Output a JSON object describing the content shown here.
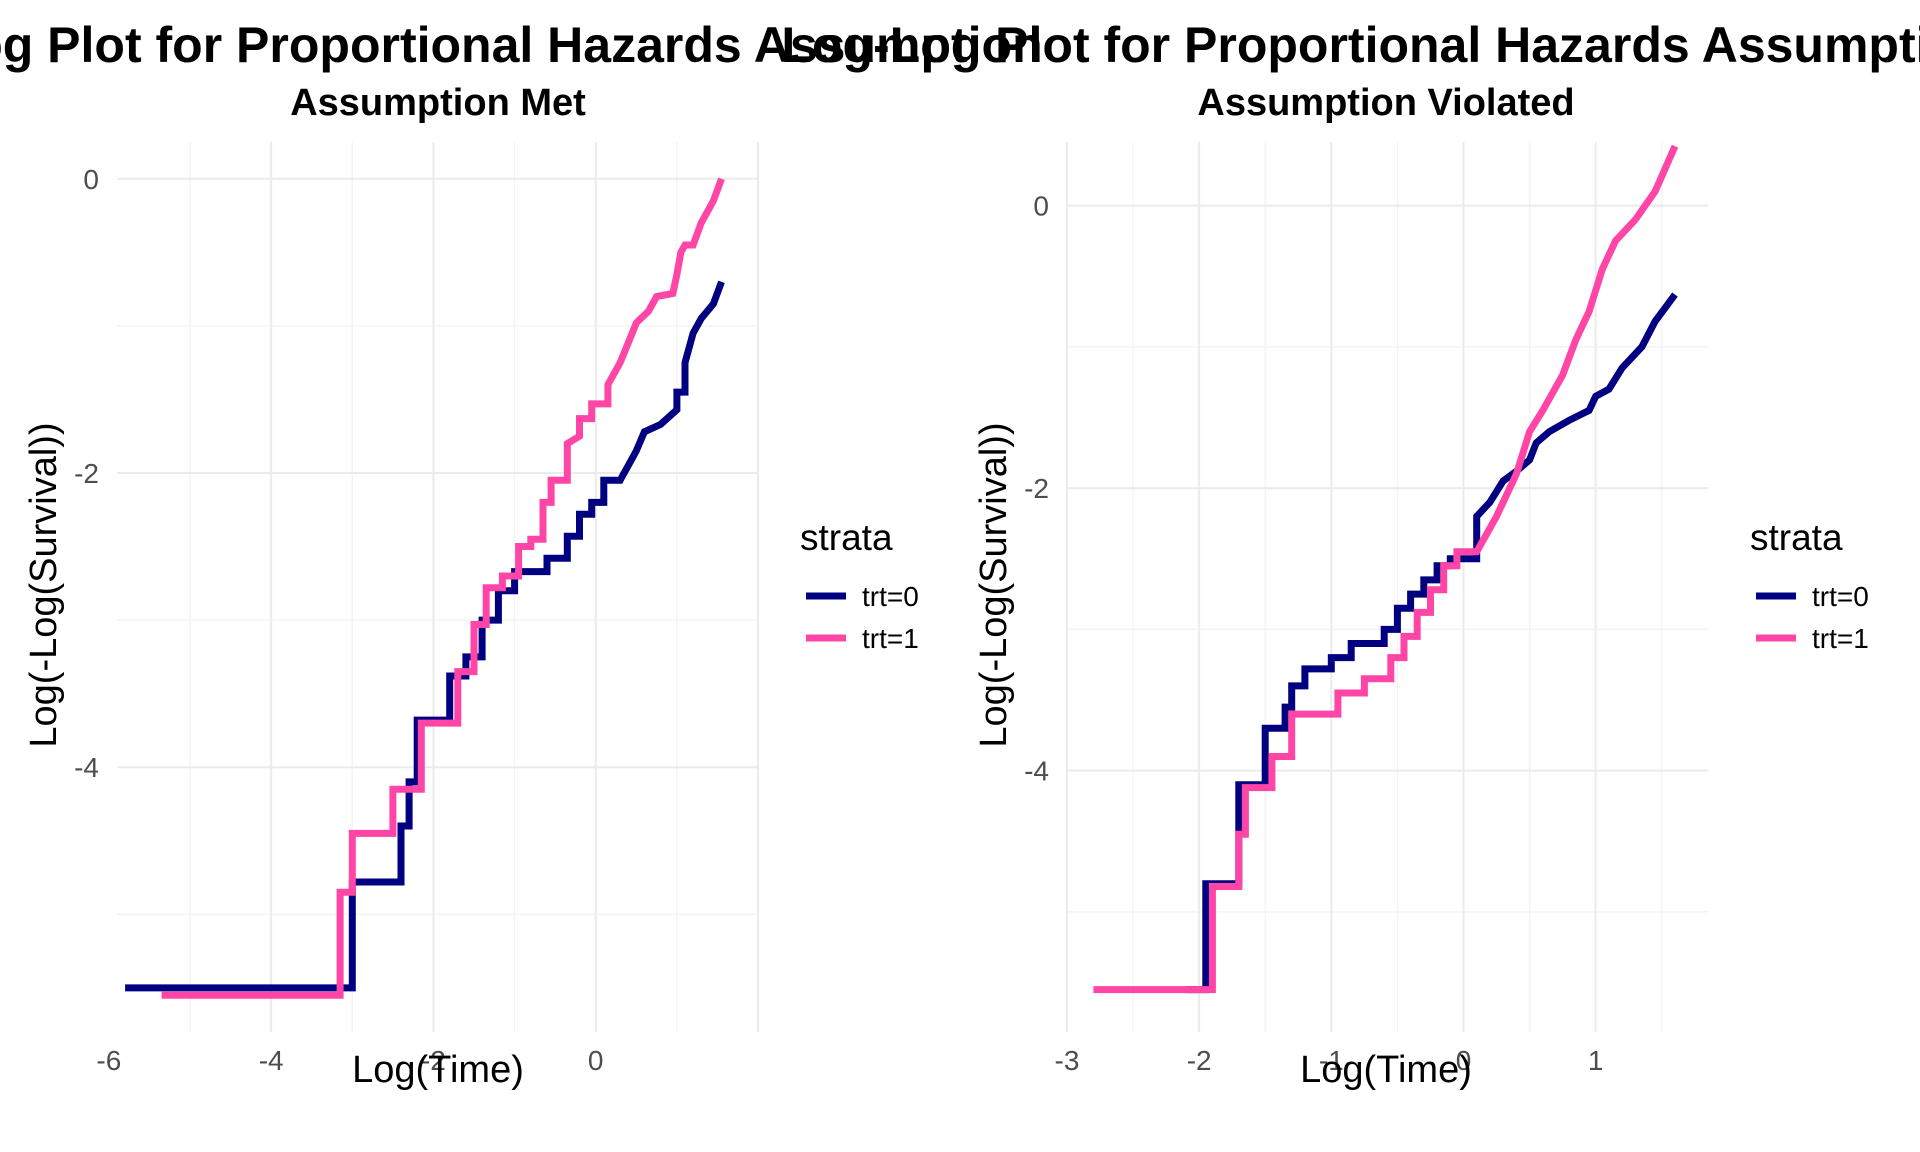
{
  "page": {
    "main_title": "Log-Log Plot for Proportional Hazards Assumption"
  },
  "colors": {
    "trt0": "#000080",
    "trt1": "#ff46a6",
    "grid_major": "#ebebeb",
    "grid_minor": "#f3f3f3",
    "tick_text": "#4d4d4d"
  },
  "chart_data": [
    {
      "type": "line",
      "step": true,
      "title": "Log-Log Plot for Proportional Hazards Assumption",
      "subtitle": "Assumption Met",
      "xlabel": "Log(Time)",
      "ylabel": "Log(-Log(Survival))",
      "xlim": [
        -5.9,
        2.0
      ],
      "ylim": [
        -5.8,
        0.25
      ],
      "xticks": [
        -6,
        -4,
        -2,
        0
      ],
      "yticks": [
        -4,
        -2,
        0
      ],
      "grid": true,
      "legend_title": "strata",
      "legend_position": "right",
      "series": [
        {
          "name": "trt=0",
          "color": "#000080",
          "points": [
            [
              -5.8,
              -5.5
            ],
            [
              -3.0,
              -5.5
            ],
            [
              -3.0,
              -4.78
            ],
            [
              -2.4,
              -4.78
            ],
            [
              -2.4,
              -4.4
            ],
            [
              -2.3,
              -4.4
            ],
            [
              -2.3,
              -4.1
            ],
            [
              -2.2,
              -4.1
            ],
            [
              -2.2,
              -3.68
            ],
            [
              -1.8,
              -3.68
            ],
            [
              -1.8,
              -3.38
            ],
            [
              -1.6,
              -3.38
            ],
            [
              -1.6,
              -3.25
            ],
            [
              -1.4,
              -3.25
            ],
            [
              -1.4,
              -3.0
            ],
            [
              -1.2,
              -3.0
            ],
            [
              -1.2,
              -2.8
            ],
            [
              -1.0,
              -2.8
            ],
            [
              -1.0,
              -2.67
            ],
            [
              -0.6,
              -2.67
            ],
            [
              -0.6,
              -2.58
            ],
            [
              -0.35,
              -2.58
            ],
            [
              -0.35,
              -2.43
            ],
            [
              -0.2,
              -2.43
            ],
            [
              -0.2,
              -2.28
            ],
            [
              -0.05,
              -2.28
            ],
            [
              -0.05,
              -2.2
            ],
            [
              0.1,
              -2.2
            ],
            [
              0.1,
              -2.05
            ],
            [
              0.3,
              -2.05
            ],
            [
              0.5,
              -1.85
            ],
            [
              0.6,
              -1.72
            ],
            [
              0.8,
              -1.67
            ],
            [
              0.9,
              -1.62
            ],
            [
              1.0,
              -1.57
            ],
            [
              1.0,
              -1.45
            ],
            [
              1.1,
              -1.45
            ],
            [
              1.1,
              -1.25
            ],
            [
              1.2,
              -1.05
            ],
            [
              1.3,
              -0.95
            ],
            [
              1.45,
              -0.85
            ],
            [
              1.55,
              -0.7
            ]
          ]
        },
        {
          "name": "trt=1",
          "color": "#ff46a6",
          "points": [
            [
              -5.35,
              -5.55
            ],
            [
              -3.15,
              -5.55
            ],
            [
              -3.15,
              -4.85
            ],
            [
              -3.0,
              -4.85
            ],
            [
              -3.0,
              -4.45
            ],
            [
              -2.5,
              -4.45
            ],
            [
              -2.5,
              -4.15
            ],
            [
              -2.15,
              -4.15
            ],
            [
              -2.15,
              -3.7
            ],
            [
              -1.7,
              -3.7
            ],
            [
              -1.7,
              -3.35
            ],
            [
              -1.5,
              -3.35
            ],
            [
              -1.5,
              -3.03
            ],
            [
              -1.35,
              -3.03
            ],
            [
              -1.35,
              -2.78
            ],
            [
              -1.15,
              -2.78
            ],
            [
              -1.15,
              -2.7
            ],
            [
              -0.95,
              -2.7
            ],
            [
              -0.95,
              -2.5
            ],
            [
              -0.8,
              -2.5
            ],
            [
              -0.8,
              -2.45
            ],
            [
              -0.65,
              -2.45
            ],
            [
              -0.65,
              -2.2
            ],
            [
              -0.55,
              -2.2
            ],
            [
              -0.55,
              -2.05
            ],
            [
              -0.35,
              -2.05
            ],
            [
              -0.35,
              -1.8
            ],
            [
              -0.2,
              -1.75
            ],
            [
              -0.2,
              -1.63
            ],
            [
              -0.05,
              -1.63
            ],
            [
              -0.05,
              -1.53
            ],
            [
              0.15,
              -1.53
            ],
            [
              0.15,
              -1.4
            ],
            [
              0.3,
              -1.25
            ],
            [
              0.45,
              -1.05
            ],
            [
              0.5,
              -0.98
            ],
            [
              0.65,
              -0.9
            ],
            [
              0.75,
              -0.8
            ],
            [
              0.95,
              -0.78
            ],
            [
              1.0,
              -0.65
            ],
            [
              1.05,
              -0.5
            ],
            [
              1.1,
              -0.45
            ],
            [
              1.2,
              -0.45
            ],
            [
              1.3,
              -0.3
            ],
            [
              1.45,
              -0.15
            ],
            [
              1.55,
              0.0
            ]
          ]
        }
      ]
    },
    {
      "type": "line",
      "step": true,
      "title": "Log-Log Plot for Proportional Hazards Assumption",
      "subtitle": "Assumption Violated",
      "xlabel": "Log(Time)",
      "ylabel": "Log(-Log(Survival))",
      "xlim": [
        -3.0,
        1.85
      ],
      "ylim": [
        -5.85,
        0.45
      ],
      "xticks": [
        -3,
        -2,
        -1,
        0,
        1
      ],
      "yticks": [
        -4,
        -2,
        0
      ],
      "grid": true,
      "legend_title": "strata",
      "legend_position": "right",
      "series": [
        {
          "name": "trt=0",
          "color": "#000080",
          "points": [
            [
              -2.1,
              -5.55
            ],
            [
              -1.95,
              -5.55
            ],
            [
              -1.95,
              -4.8
            ],
            [
              -1.7,
              -4.8
            ],
            [
              -1.7,
              -4.1
            ],
            [
              -1.5,
              -4.1
            ],
            [
              -1.5,
              -3.7
            ],
            [
              -1.35,
              -3.7
            ],
            [
              -1.35,
              -3.55
            ],
            [
              -1.3,
              -3.55
            ],
            [
              -1.3,
              -3.4
            ],
            [
              -1.2,
              -3.4
            ],
            [
              -1.2,
              -3.28
            ],
            [
              -1.0,
              -3.28
            ],
            [
              -1.0,
              -3.2
            ],
            [
              -0.85,
              -3.2
            ],
            [
              -0.85,
              -3.1
            ],
            [
              -0.6,
              -3.1
            ],
            [
              -0.6,
              -3.0
            ],
            [
              -0.5,
              -3.0
            ],
            [
              -0.5,
              -2.85
            ],
            [
              -0.4,
              -2.85
            ],
            [
              -0.4,
              -2.75
            ],
            [
              -0.3,
              -2.75
            ],
            [
              -0.3,
              -2.65
            ],
            [
              -0.2,
              -2.65
            ],
            [
              -0.2,
              -2.55
            ],
            [
              -0.1,
              -2.55
            ],
            [
              -0.1,
              -2.5
            ],
            [
              0.1,
              -2.5
            ],
            [
              0.1,
              -2.2
            ],
            [
              0.2,
              -2.1
            ],
            [
              0.3,
              -1.95
            ],
            [
              0.4,
              -1.88
            ],
            [
              0.5,
              -1.8
            ],
            [
              0.55,
              -1.68
            ],
            [
              0.65,
              -1.6
            ],
            [
              0.8,
              -1.52
            ],
            [
              0.95,
              -1.45
            ],
            [
              1.0,
              -1.35
            ],
            [
              1.1,
              -1.3
            ],
            [
              1.2,
              -1.15
            ],
            [
              1.35,
              -1.0
            ],
            [
              1.45,
              -0.82
            ],
            [
              1.6,
              -0.63
            ]
          ]
        },
        {
          "name": "trt=1",
          "color": "#ff46a6",
          "points": [
            [
              -2.8,
              -5.55
            ],
            [
              -1.9,
              -5.55
            ],
            [
              -1.9,
              -4.82
            ],
            [
              -1.7,
              -4.82
            ],
            [
              -1.7,
              -4.45
            ],
            [
              -1.65,
              -4.45
            ],
            [
              -1.65,
              -4.12
            ],
            [
              -1.45,
              -4.12
            ],
            [
              -1.45,
              -3.9
            ],
            [
              -1.3,
              -3.9
            ],
            [
              -1.3,
              -3.6
            ],
            [
              -0.95,
              -3.6
            ],
            [
              -0.95,
              -3.45
            ],
            [
              -0.75,
              -3.45
            ],
            [
              -0.75,
              -3.35
            ],
            [
              -0.55,
              -3.35
            ],
            [
              -0.55,
              -3.2
            ],
            [
              -0.45,
              -3.2
            ],
            [
              -0.45,
              -3.05
            ],
            [
              -0.35,
              -3.05
            ],
            [
              -0.35,
              -2.88
            ],
            [
              -0.25,
              -2.88
            ],
            [
              -0.25,
              -2.72
            ],
            [
              -0.15,
              -2.72
            ],
            [
              -0.15,
              -2.55
            ],
            [
              -0.05,
              -2.55
            ],
            [
              -0.05,
              -2.45
            ],
            [
              0.1,
              -2.45
            ],
            [
              0.25,
              -2.2
            ],
            [
              0.4,
              -1.9
            ],
            [
              0.5,
              -1.6
            ],
            [
              0.6,
              -1.45
            ],
            [
              0.75,
              -1.2
            ],
            [
              0.85,
              -0.95
            ],
            [
              0.95,
              -0.75
            ],
            [
              1.05,
              -0.45
            ],
            [
              1.15,
              -0.25
            ],
            [
              1.3,
              -0.1
            ],
            [
              1.45,
              0.1
            ],
            [
              1.6,
              0.42
            ]
          ]
        }
      ]
    }
  ]
}
